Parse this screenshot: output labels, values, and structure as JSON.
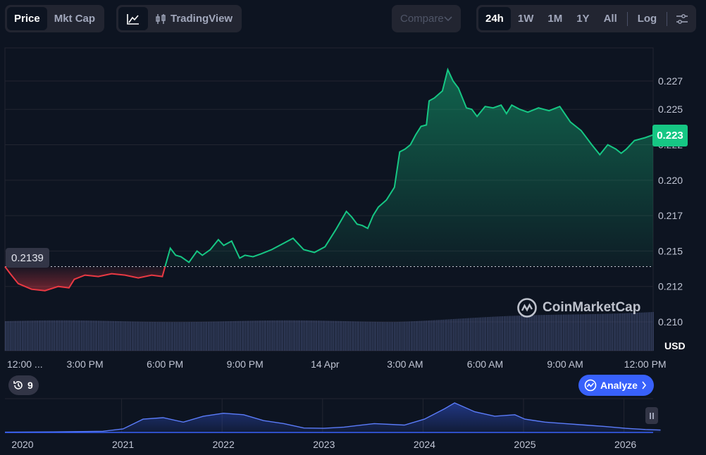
{
  "toolbar": {
    "type_tabs": [
      "Price",
      "Mkt Cap"
    ],
    "trading_view_label": "TradingView",
    "compare_label": "Compare",
    "ranges": [
      "24h",
      "1W",
      "1M",
      "1Y",
      "All"
    ],
    "log_label": "Log",
    "active_type": "Price",
    "active_range": "24h"
  },
  "watermark": "CoinMarketCap",
  "analyze_label": "Analyze",
  "events_count": "9",
  "current_price": "0.223",
  "reference_price": "0.2139",
  "currency": "USD",
  "colors": {
    "up": "#16c784",
    "down": "#ea3943",
    "accent": "#3861fb",
    "background": "#0d1421"
  },
  "icons": [
    "line-chart-icon",
    "candlestick-icon",
    "chevron-down-icon",
    "settings-sliders-icon",
    "history-icon",
    "analyze-icon",
    "chevron-right-icon",
    "coinmarketcap-logo-icon",
    "pause-icon"
  ],
  "chart_data": [
    {
      "type": "line",
      "title": "",
      "x_tick_labels": [
        "12:00 ...",
        "3:00 PM",
        "6:00 PM",
        "9:00 PM",
        "14 Apr",
        "3:00 AM",
        "6:00 AM",
        "9:00 AM",
        "12:00 PM"
      ],
      "y_tick_labels": [
        "0.210",
        "0.212",
        "0.215",
        "0.217",
        "0.220",
        "0.222",
        "0.225",
        "0.227"
      ],
      "ylabel": "USD",
      "ylim": [
        0.2095,
        0.2285
      ],
      "xlim": [
        0,
        24.3
      ],
      "baseline": 0.2139,
      "grid": true,
      "x_hours": [
        0,
        0.2,
        0.5,
        1,
        1.5,
        2,
        2.4,
        2.6,
        3,
        3.5,
        4,
        4.5,
        5,
        5.5,
        5.9,
        6.2,
        6.4,
        6.6,
        6.9,
        7.2,
        7.4,
        7.7,
        8,
        8.2,
        8.5,
        8.8,
        9,
        9.3,
        9.6,
        10,
        10.4,
        10.8,
        11.2,
        11.6,
        12,
        12.4,
        12.8,
        13,
        13.2,
        13.4,
        13.6,
        13.8,
        14,
        14.3,
        14.6,
        14.8,
        15,
        15.2,
        15.4,
        15.6,
        15.8,
        15.9,
        16.1,
        16.4,
        16.6,
        16.8,
        17,
        17.3,
        17.5,
        17.7,
        18,
        18.3,
        18.6,
        18.8,
        19,
        19.3,
        19.6,
        20,
        20.4,
        20.8,
        21.2,
        21.6,
        22,
        22.3,
        22.6,
        22.9,
        23.1,
        23.3,
        23.6,
        24,
        24.3
      ],
      "price": [
        0.2139,
        0.2134,
        0.2127,
        0.2123,
        0.2122,
        0.2125,
        0.2124,
        0.213,
        0.2133,
        0.2132,
        0.2134,
        0.2133,
        0.2131,
        0.2133,
        0.2132,
        0.2152,
        0.2147,
        0.2146,
        0.2142,
        0.215,
        0.2147,
        0.2151,
        0.2158,
        0.2154,
        0.2157,
        0.2145,
        0.2147,
        0.2146,
        0.2148,
        0.2151,
        0.2155,
        0.2159,
        0.2151,
        0.2149,
        0.2153,
        0.2165,
        0.2178,
        0.2174,
        0.2169,
        0.2168,
        0.2166,
        0.2175,
        0.2181,
        0.2186,
        0.2195,
        0.222,
        0.2222,
        0.2225,
        0.2232,
        0.2238,
        0.2239,
        0.2256,
        0.2258,
        0.2263,
        0.2278,
        0.227,
        0.2265,
        0.2251,
        0.225,
        0.2245,
        0.2252,
        0.2251,
        0.2253,
        0.2247,
        0.2253,
        0.225,
        0.2248,
        0.2251,
        0.2249,
        0.2252,
        0.2241,
        0.2235,
        0.2225,
        0.2218,
        0.2225,
        0.2222,
        0.2219,
        0.2222,
        0.2228,
        0.223,
        0.2232
      ]
    },
    {
      "type": "area",
      "title": "",
      "x_tick_labels": [
        "2020",
        "2021",
        "2022",
        "2023",
        "2024",
        "2025",
        "2026"
      ],
      "x_years": [
        2019.8,
        2020.3,
        2020.8,
        2021.0,
        2021.2,
        2021.4,
        2021.6,
        2021.8,
        2022.0,
        2022.2,
        2022.4,
        2022.6,
        2022.8,
        2023.0,
        2023.2,
        2023.5,
        2023.8,
        2024.0,
        2024.2,
        2024.3,
        2024.5,
        2024.7,
        2024.9,
        2025.0,
        2025.2,
        2025.4,
        2025.6,
        2025.8,
        2026.0,
        2026.2,
        2026.35
      ],
      "values": [
        0.01,
        0.02,
        0.04,
        0.12,
        0.45,
        0.5,
        0.35,
        0.55,
        0.65,
        0.6,
        0.4,
        0.3,
        0.15,
        0.14,
        0.18,
        0.3,
        0.25,
        0.45,
        0.8,
        1.0,
        0.7,
        0.55,
        0.6,
        0.45,
        0.35,
        0.3,
        0.25,
        0.2,
        0.14,
        0.1,
        0.08
      ]
    }
  ]
}
